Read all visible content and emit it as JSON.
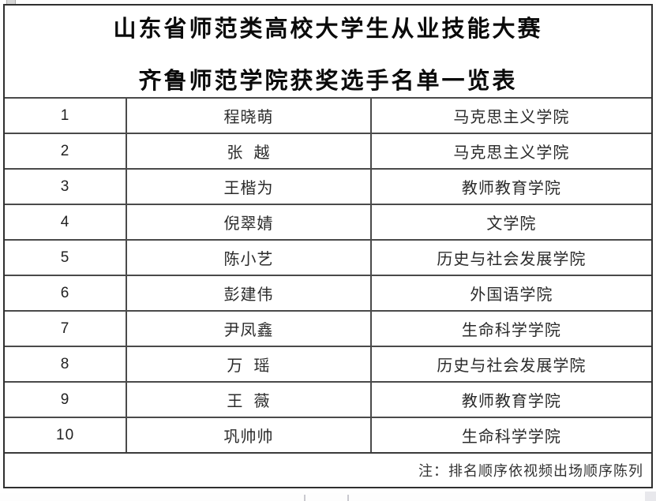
{
  "title": {
    "line1": "山东省师范类高校大学生从业技能大赛",
    "line2": "齐鲁师范学院获奖选手名单一览表"
  },
  "table": {
    "columns": [
      "rank",
      "name",
      "college"
    ],
    "rows": [
      {
        "rank": "1",
        "name": "程晓萌",
        "college": "马克思主义学院"
      },
      {
        "rank": "2",
        "name": "张  越",
        "college": "马克思主义学院"
      },
      {
        "rank": "3",
        "name": "王楷为",
        "college": "教师教育学院"
      },
      {
        "rank": "4",
        "name": "倪翠婧",
        "college": "文学院"
      },
      {
        "rank": "5",
        "name": "陈小艺",
        "college": "历史与社会发展学院"
      },
      {
        "rank": "6",
        "name": "彭建伟",
        "college": "外国语学院"
      },
      {
        "rank": "7",
        "name": "尹凤鑫",
        "college": "生命科学学院"
      },
      {
        "rank": "8",
        "name": "万  瑶",
        "college": "历史与社会发展学院"
      },
      {
        "rank": "9",
        "name": "王  薇",
        "college": "教师教育学院"
      },
      {
        "rank": "10",
        "name": "巩帅帅",
        "college": "生命科学学院"
      }
    ]
  },
  "footer": {
    "note": "注：排名顺序依视频出场顺序陈列"
  },
  "colors": {
    "border_inner": "#4a4a4a",
    "border_outer": "#2f2f2f",
    "text_title": "#0a0a0a",
    "text_body": "#2b2b2b",
    "background": "#ffffff"
  }
}
